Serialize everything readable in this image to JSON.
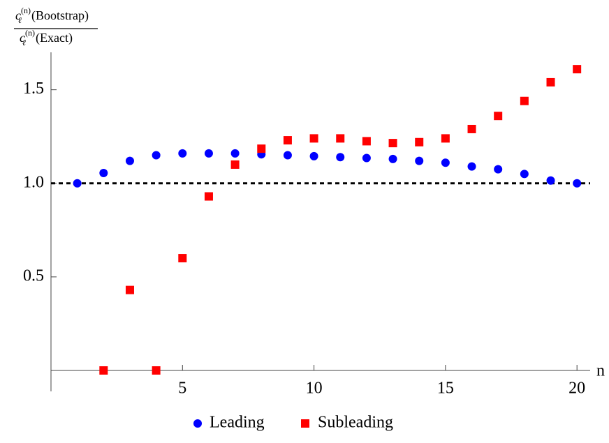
{
  "chart_data": {
    "type": "scatter",
    "ylabel": {
      "numerator": {
        "symbol": "c",
        "sub": "ℓ",
        "sup": "(n)",
        "text": "(Bootstrap)"
      },
      "denominator": {
        "symbol": "c",
        "sub": "ℓ",
        "sup": "(n)",
        "text": "(Exact)"
      }
    },
    "xlabel": "n",
    "xlim": [
      0,
      20.5
    ],
    "ylim": [
      0,
      1.7
    ],
    "xticks": [
      5,
      10,
      15,
      20
    ],
    "yticks": [
      0.5,
      {
        "value": 1,
        "label": "1.0"
      },
      1.5
    ],
    "reference_line": 1,
    "legend": "bottom",
    "series": [
      {
        "name": "Leading",
        "color": "#0000ff",
        "marker": "circle",
        "x": [
          1,
          2,
          3,
          4,
          5,
          6,
          7,
          8,
          9,
          10,
          11,
          12,
          13,
          14,
          15,
          16,
          17,
          18,
          19,
          20
        ],
        "values": [
          1.0,
          1.055,
          1.12,
          1.15,
          1.16,
          1.16,
          1.16,
          1.155,
          1.15,
          1.145,
          1.14,
          1.135,
          1.13,
          1.12,
          1.11,
          1.09,
          1.075,
          1.05,
          1.015,
          1.0
        ]
      },
      {
        "name": "Subleading",
        "color": "#ff0000",
        "marker": "square",
        "x": [
          2,
          3,
          4,
          5,
          6,
          7,
          8,
          9,
          10,
          11,
          12,
          13,
          14,
          15,
          16,
          17,
          18,
          19,
          20
        ],
        "values": [
          0,
          0.43,
          0,
          0.6,
          0.93,
          1.1,
          1.185,
          1.23,
          1.24,
          1.24,
          1.225,
          1.215,
          1.22,
          1.24,
          1.29,
          1.36,
          1.44,
          1.54,
          1.61
        ]
      }
    ]
  }
}
